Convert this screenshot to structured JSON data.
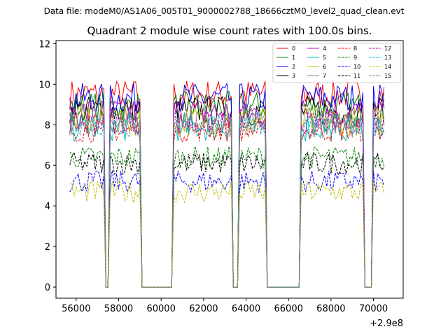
{
  "figure": {
    "data_file_label": "Data file: modeM0/AS1A06_005T01_9000002788_18666cztM0_level2_quad_clean.evt"
  },
  "chart_data": {
    "type": "line",
    "title": "Quadrant 2 module wise count rates with 100.0s bins.",
    "xlabel": "",
    "ylabel": "",
    "x_offset_label": "+2.9e8",
    "xlim": [
      55050,
      71400
    ],
    "ylim": [
      -0.55,
      12.15
    ],
    "x_ticks": [
      56000,
      58000,
      60000,
      62000,
      64000,
      66000,
      68000,
      70000
    ],
    "x_tick_labels": [
      "56000",
      "58000",
      "60000",
      "62000",
      "64000",
      "66000",
      "68000",
      "70000"
    ],
    "y_ticks": [
      0,
      2,
      4,
      6,
      8,
      10,
      12
    ],
    "y_tick_labels": [
      "0",
      "2",
      "4",
      "6",
      "8",
      "10",
      "12"
    ],
    "bin_size_s": 100,
    "x_start": 55700,
    "x_end": 70500,
    "gaps": [
      {
        "from": 57300,
        "to": 57600
      },
      {
        "from": 59000,
        "to": 60600
      },
      {
        "from": 63300,
        "to": 63700
      },
      {
        "from": 64900,
        "to": 66600
      },
      {
        "from": 69500,
        "to": 70000
      }
    ],
    "legend_position": "top-right",
    "grid": false,
    "series": [
      {
        "name": "0",
        "color": "#ff0000",
        "dash": "solid",
        "level": 9.5
      },
      {
        "name": "1",
        "color": "#008000",
        "dash": "solid",
        "level": 8.9
      },
      {
        "name": "2",
        "color": "#0000ff",
        "dash": "solid",
        "level": 9.3
      },
      {
        "name": "3",
        "color": "#000000",
        "dash": "solid",
        "level": 8.7
      },
      {
        "name": "4",
        "color": "#bf00bf",
        "dash": "solid",
        "level": 8.6
      },
      {
        "name": "5",
        "color": "#00bfbf",
        "dash": "solid",
        "level": 7.9
      },
      {
        "name": "6",
        "color": "#bfbf00",
        "dash": "solid",
        "level": 8.2
      },
      {
        "name": "7",
        "color": "#808080",
        "dash": "solid",
        "level": 8.3
      },
      {
        "name": "8",
        "color": "#ff0000",
        "dash": "dashed",
        "level": 7.7
      },
      {
        "name": "9",
        "color": "#008000",
        "dash": "dashed",
        "level": 6.4
      },
      {
        "name": "10",
        "color": "#0000ff",
        "dash": "dashed",
        "level": 5.2
      },
      {
        "name": "11",
        "color": "#000000",
        "dash": "dashed",
        "level": 6.1
      },
      {
        "name": "12",
        "color": "#bf00bf",
        "dash": "dashed",
        "level": 8.1
      },
      {
        "name": "13",
        "color": "#00bfbf",
        "dash": "dashed",
        "level": 8.0
      },
      {
        "name": "14",
        "color": "#bfbf00",
        "dash": "dashed",
        "level": 4.7
      },
      {
        "name": "15",
        "color": "#808080",
        "dash": "dashed",
        "level": 7.9
      }
    ]
  }
}
